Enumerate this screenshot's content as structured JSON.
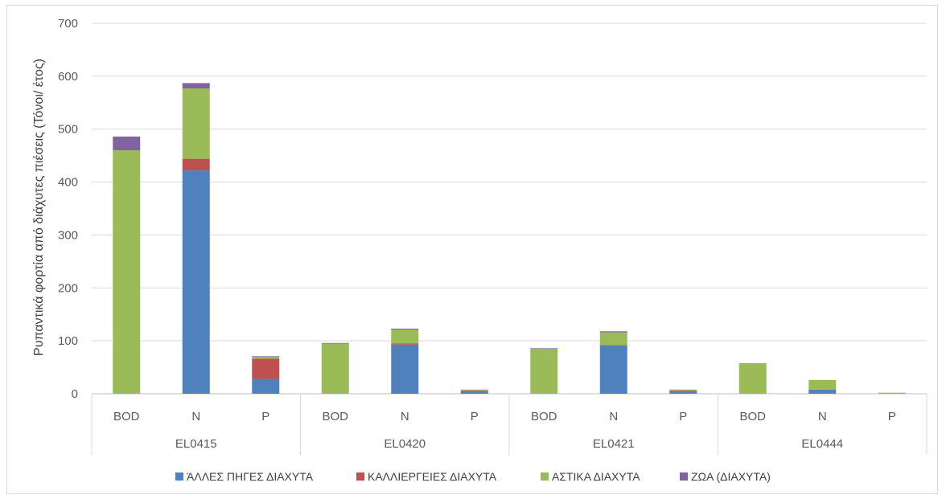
{
  "chart_data": {
    "type": "bar",
    "stacked": true,
    "title": "",
    "ylabel": "Ρυπαντικά φορτία από διάχυτες πιέσεις (Τόνοι/ έτος)",
    "xlabel": "",
    "ylim": [
      0,
      700
    ],
    "yticks": [
      0,
      100,
      200,
      300,
      400,
      500,
      600,
      700
    ],
    "grid": true,
    "legend_position": "bottom",
    "groups": [
      {
        "name": "EL0415",
        "categories": [
          "BOD",
          "N",
          "P"
        ]
      },
      {
        "name": "EL0420",
        "categories": [
          "BOD",
          "N",
          "P"
        ]
      },
      {
        "name": "EL0421",
        "categories": [
          "BOD",
          "N",
          "P"
        ]
      },
      {
        "name": "EL0444",
        "categories": [
          "BOD",
          "N",
          "P"
        ]
      }
    ],
    "series": [
      {
        "name": "ΆΛΛΕΣ ΠΗΓΕΣ ΔΙΑΧΥΤΑ",
        "color": "#4f81bd",
        "values": [
          0,
          422,
          28,
          0,
          93,
          5,
          0,
          91,
          5,
          0,
          8,
          0
        ]
      },
      {
        "name": "ΚΑΛΛΙΕΡΓΕΙΕΣ ΔΙΑΧΥΤΑ",
        "color": "#c0504d",
        "values": [
          0,
          22,
          38,
          0,
          2,
          1,
          0,
          1,
          1,
          0,
          0,
          0
        ]
      },
      {
        "name": "ΑΣΤΙΚΑ ΔΙΑΧΥΤΑ",
        "color": "#9bbb59",
        "values": [
          460,
          133,
          4,
          95,
          26,
          2,
          85,
          24,
          2,
          58,
          18,
          2
        ]
      },
      {
        "name": "ΖΩΑ (ΔΙΑΧΥΤΑ)",
        "color": "#8064a2",
        "values": [
          26,
          10,
          1,
          1,
          2,
          0,
          1,
          2,
          0,
          0,
          0,
          0
        ]
      }
    ]
  }
}
